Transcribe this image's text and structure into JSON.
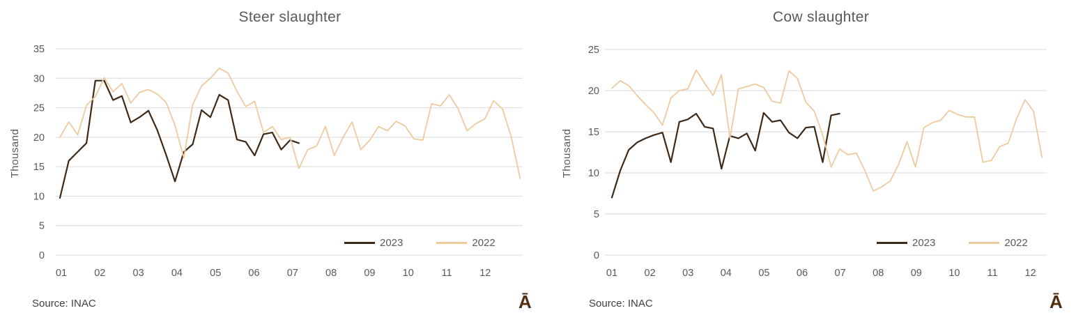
{
  "style": {
    "grid_color": "#d9d9d9",
    "tick_color": "#595959",
    "title_color": "#595959",
    "source_color": "#3f3f3f",
    "logo_color": "#512d12",
    "border_color": "#d6d6d6",
    "series_2023_color": "#3e2817",
    "series_2022_color": "#eeca9e"
  },
  "chart_data": [
    {
      "type": "line",
      "title": "Steer slaughter",
      "ylabel": "Thousand",
      "xlabel": "",
      "x_unit": "week (weekly data, months 01-12)",
      "x_tick_labels": [
        "01",
        "02",
        "03",
        "04",
        "05",
        "06",
        "07",
        "08",
        "09",
        "10",
        "11",
        "12"
      ],
      "ylim": [
        0,
        35
      ],
      "y_ticks": [
        0,
        5,
        10,
        15,
        20,
        25,
        30,
        35
      ],
      "grid": true,
      "legend_position": "inside bottom-right",
      "source_note": "Source: INAC",
      "watermark": "Ā",
      "series": [
        {
          "name": "2023",
          "color": "#3e2817",
          "values": [
            9.7,
            16,
            17.5,
            19,
            29.6,
            29.6,
            26.3,
            27,
            22.5,
            23.4,
            24.5,
            21.2,
            17,
            12.5,
            17.5,
            18.8,
            24.6,
            23.4,
            27.2,
            26.3,
            19.6,
            19.2,
            16.9,
            20.5,
            20.8,
            17.9,
            19.5,
            19
          ]
        },
        {
          "name": "2022",
          "color": "#eeca9e",
          "values": [
            20,
            22.6,
            20.4,
            25.4,
            26.9,
            30.1,
            27.7,
            29.1,
            25.8,
            27.6,
            28.1,
            27.3,
            25.9,
            22,
            16.5,
            25.5,
            28.7,
            30,
            31.7,
            30.9,
            27.8,
            25.2,
            26.1,
            20.8,
            21.8,
            19.6,
            20,
            14.7,
            17.9,
            18.5,
            21.8,
            16.9,
            20,
            22.6,
            17.9,
            19.5,
            21.8,
            21.1,
            22.7,
            21.9,
            19.7,
            19.5,
            25.7,
            25.3,
            27.2,
            24.8,
            21.1,
            22.3,
            23.1,
            26.2,
            24.8,
            20,
            13
          ]
        }
      ]
    },
    {
      "type": "line",
      "title": "Cow slaughter",
      "ylabel": "Thousand",
      "xlabel": "",
      "x_unit": "week (weekly data, months 01-12)",
      "x_tick_labels": [
        "01",
        "02",
        "03",
        "04",
        "05",
        "06",
        "07",
        "08",
        "09",
        "10",
        "11",
        "12"
      ],
      "ylim": [
        0,
        25
      ],
      "y_ticks": [
        0,
        5,
        10,
        15,
        20,
        25
      ],
      "grid": true,
      "legend_position": "inside bottom-right",
      "source_note": "Source: INAC",
      "watermark": "Ā",
      "series": [
        {
          "name": "2023",
          "color": "#3e2817",
          "values": [
            7,
            10.3,
            12.8,
            13.7,
            14.2,
            14.6,
            14.9,
            11.3,
            16.2,
            16.5,
            17.2,
            15.6,
            15.4,
            10.5,
            14.5,
            14.2,
            14.8,
            12.7,
            17.3,
            16.2,
            16.4,
            14.9,
            14.2,
            15.5,
            15.6,
            11.3,
            17,
            17.2
          ]
        },
        {
          "name": "2022",
          "color": "#eeca9e",
          "values": [
            20.3,
            21.2,
            20.6,
            19.4,
            18.3,
            17.3,
            15.8,
            19.1,
            20,
            20.2,
            22.5,
            20.9,
            19.4,
            21.9,
            14.2,
            20.2,
            20.5,
            20.8,
            20.4,
            18.7,
            18.5,
            22.4,
            21.5,
            18.6,
            17.5,
            14.6,
            10.7,
            12.9,
            12.2,
            12.4,
            10.3,
            7.8,
            8.3,
            9,
            11,
            13.8,
            10.7,
            15.5,
            16.1,
            16.4,
            17.6,
            17.1,
            16.8,
            16.8,
            11.3,
            11.5,
            13.2,
            13.6,
            16.6,
            18.9,
            17.5,
            11.9
          ]
        }
      ]
    }
  ]
}
